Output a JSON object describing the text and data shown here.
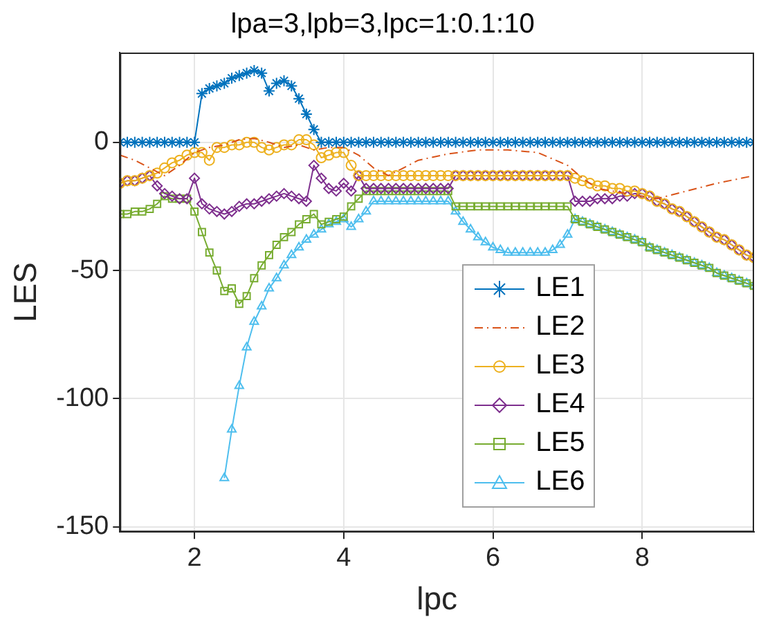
{
  "chart_data": {
    "type": "line",
    "title": "lpa=3,lpb=3,lpc=1:0.1:10",
    "xlabel": "lpc",
    "ylabel": "LES",
    "x": [
      1.0,
      1.1,
      1.2,
      1.3,
      1.4,
      1.5,
      1.6,
      1.7,
      1.8,
      1.9,
      2.0,
      2.1,
      2.2,
      2.3,
      2.4,
      2.5,
      2.6,
      2.7,
      2.8,
      2.9,
      3.0,
      3.1,
      3.2,
      3.3,
      3.4,
      3.5,
      3.6,
      3.7,
      3.8,
      3.9,
      4.0,
      4.1,
      4.2,
      4.3,
      4.4,
      4.5,
      4.6,
      4.7,
      4.8,
      4.9,
      5.0,
      5.1,
      5.2,
      5.3,
      5.4,
      5.5,
      5.6,
      5.7,
      5.8,
      5.9,
      6.0,
      6.1,
      6.2,
      6.3,
      6.4,
      6.5,
      6.6,
      6.7,
      6.8,
      6.9,
      7.0,
      7.1,
      7.2,
      7.3,
      7.4,
      7.5,
      7.6,
      7.7,
      7.8,
      7.9,
      8.0,
      8.1,
      8.2,
      8.3,
      8.4,
      8.5,
      8.6,
      8.7,
      8.8,
      8.9,
      9.0,
      9.1,
      9.2,
      9.3,
      9.4,
      9.5
    ],
    "series": [
      {
        "name": "LE1",
        "color": "#0072bd",
        "marker": "cross",
        "values": [
          0,
          0,
          0,
          0,
          0,
          0,
          0,
          0,
          0,
          0,
          0,
          19,
          21,
          22,
          23,
          25,
          26,
          27,
          28,
          27,
          20,
          23,
          24,
          22,
          17,
          11,
          5,
          0,
          0,
          0,
          0,
          0,
          0,
          0,
          0,
          0,
          0,
          0,
          0,
          0,
          0,
          0,
          0,
          0,
          0,
          0,
          0,
          0,
          0,
          0,
          0,
          0,
          0,
          0,
          0,
          0,
          0,
          0,
          0,
          0,
          0,
          0,
          0,
          0,
          0,
          0,
          0,
          0,
          0,
          0,
          0,
          0,
          0,
          0,
          0,
          0,
          0,
          0,
          0,
          0,
          0,
          0,
          0,
          0,
          0,
          0
        ]
      },
      {
        "name": "LE2",
        "color": "#d95319",
        "marker": "none",
        "line_style": "dashed",
        "x": [
          1.0,
          1.2,
          1.4,
          1.6,
          1.8,
          2.0,
          2.2,
          2.4,
          2.6,
          2.8,
          3.0,
          3.2,
          3.4,
          3.6,
          3.8,
          4.0,
          4.2,
          4.4,
          4.6,
          4.8,
          5.0,
          5.4,
          5.8,
          6.2,
          6.6,
          7.0,
          7.2,
          7.4,
          7.8,
          8.2,
          8.6,
          9.0,
          9.5
        ],
        "values": [
          -5,
          -7,
          -10,
          -13,
          -9,
          -4,
          -2,
          -1,
          1,
          1.5,
          0,
          -2,
          -1,
          -3,
          -2,
          -2,
          -5,
          -10,
          -13,
          -10,
          -7,
          -4.5,
          -3,
          -3,
          -4,
          -9,
          -14,
          -18,
          -20,
          -22,
          -19,
          -16,
          -13
        ]
      },
      {
        "name": "LE3",
        "color": "#edb120",
        "marker": "circle",
        "values": [
          -16,
          -15,
          -15,
          -14,
          -13,
          -12,
          -10,
          -8,
          -7,
          -5,
          -4,
          -4,
          -7,
          -2,
          -2,
          -1,
          -1,
          0,
          0,
          -2,
          -3,
          -2,
          -1,
          -1,
          1,
          1,
          -1,
          -6,
          -5,
          -4,
          -4,
          -9,
          -13,
          -13,
          -13,
          -13,
          -13,
          -13,
          -13,
          -13,
          -13,
          -13,
          -13,
          -13,
          -13,
          -13,
          -13,
          -13,
          -13,
          -13,
          -13,
          -13,
          -13,
          -13,
          -13,
          -13,
          -13,
          -13,
          -13,
          -13,
          -13,
          -14,
          -15,
          -16,
          -17,
          -17,
          -18,
          -18,
          -19,
          -19,
          -20,
          -21,
          -23,
          -24,
          -26,
          -27,
          -29,
          -31,
          -33,
          -35,
          -37,
          -38,
          -40,
          -42,
          -44,
          -45
        ]
      },
      {
        "name": "LE4",
        "color": "#7e2f8e",
        "marker": "diamond",
        "values": [
          -16,
          -15,
          -15,
          -14,
          -13,
          -17,
          -20,
          -21,
          -22,
          -22,
          -14,
          -24,
          -26,
          -27,
          -28,
          -27,
          -25,
          -24,
          -24,
          -23,
          -22,
          -21,
          -20,
          -21,
          -22,
          -23,
          -9,
          -14,
          -18,
          -19,
          -16,
          -19,
          -13,
          -18,
          -18,
          -18,
          -18,
          -18,
          -18,
          -18,
          -18,
          -18,
          -18,
          -18,
          -18,
          -13,
          -13,
          -13,
          -13,
          -13,
          -13,
          -13,
          -13,
          -13,
          -13,
          -13,
          -13,
          -13,
          -13,
          -13,
          -13,
          -23,
          -23,
          -23,
          -22,
          -22,
          -22,
          -21,
          -21,
          -20,
          -20,
          -21,
          -23,
          -24,
          -26,
          -27,
          -29,
          -31,
          -33,
          -35,
          -37,
          -38,
          -40,
          -42,
          -44,
          -45
        ]
      },
      {
        "name": "LE5",
        "color": "#77ac30",
        "marker": "square",
        "values": [
          -28,
          -28,
          -27,
          -27,
          -26,
          -24,
          -21,
          -22,
          -22,
          -22,
          -27,
          -35,
          -43,
          -50,
          -58,
          -57,
          -63,
          -60,
          -53,
          -48,
          -44,
          -40,
          -37,
          -35,
          -32,
          -30,
          -28,
          -32,
          -31,
          -30,
          -29,
          -25,
          -22,
          -19,
          -19,
          -19,
          -19,
          -19,
          -19,
          -19,
          -19,
          -19,
          -19,
          -19,
          -19,
          -25,
          -25,
          -25,
          -25,
          -25,
          -25,
          -25,
          -25,
          -25,
          -25,
          -25,
          -25,
          -25,
          -25,
          -25,
          -25,
          -30,
          -31,
          -32,
          -33,
          -34,
          -35,
          -36,
          -37,
          -38,
          -39,
          -41,
          -42,
          -43,
          -44,
          -45,
          -46,
          -47,
          -48,
          -49,
          -51,
          -52,
          -53,
          -54,
          -55,
          -56
        ]
      },
      {
        "name": "LE6",
        "color": "#4dbeee",
        "marker": "triangle",
        "values": [
          null,
          null,
          null,
          null,
          null,
          null,
          null,
          null,
          null,
          null,
          null,
          null,
          null,
          null,
          -131,
          -112,
          -95,
          -80,
          -70,
          -64,
          -57,
          -53,
          -48,
          -44,
          -41,
          -38,
          -36,
          -34,
          -32,
          -31,
          -30,
          -33,
          -30,
          -27,
          -23,
          -23,
          -23,
          -23,
          -23,
          -23,
          -23,
          -23,
          -23,
          -23,
          -23,
          -27,
          -31,
          -34,
          -37,
          -39,
          -41,
          -42,
          -43,
          -43,
          -43,
          -43,
          -43,
          -43,
          -42,
          -40,
          -36,
          -30,
          -31,
          -32,
          -33,
          -34,
          -35,
          -36,
          -37,
          -38,
          -39,
          -41,
          -42,
          -43,
          -44,
          -45,
          -46,
          -47,
          -48,
          -49,
          -51,
          -52,
          -53,
          -54,
          -55,
          -56
        ]
      }
    ],
    "xlim": [
      1,
      9.5
    ],
    "ylim": [
      -152,
      35
    ],
    "xticks": [
      2,
      4,
      6,
      8
    ],
    "yticks": [
      -150,
      -100,
      -50,
      0
    ],
    "grid": true,
    "legend": "right"
  }
}
